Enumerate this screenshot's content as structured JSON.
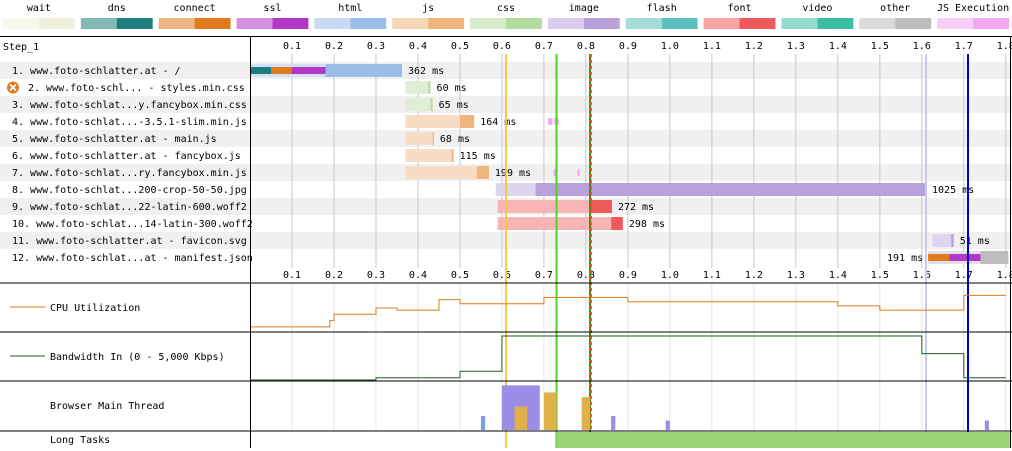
{
  "legend": [
    {
      "label": "wait",
      "color": "#f0f0dc"
    },
    {
      "label": "dns",
      "color": "#1e7d7d"
    },
    {
      "label": "connect",
      "color": "#e07a1c"
    },
    {
      "label": "ssl",
      "color": "#b338c9"
    },
    {
      "label": "html",
      "color": "#9cbde8"
    },
    {
      "label": "js",
      "color": "#f0b47e"
    },
    {
      "label": "css",
      "color": "#b5dca0"
    },
    {
      "label": "image",
      "color": "#b9a2dc"
    },
    {
      "label": "flash",
      "color": "#5fc0c0"
    },
    {
      "label": "font",
      "color": "#ee5a5a"
    },
    {
      "label": "video",
      "color": "#3bbea0"
    },
    {
      "label": "other",
      "color": "#bdbdbd"
    },
    {
      "label": "JS Execution",
      "color": "#f3a6f3"
    }
  ],
  "step_label": "Step_1",
  "graph_labels": {
    "cpu": "CPU Utilization",
    "bandwidth": "Bandwidth In (0 - 5,000 Kbps)",
    "main_thread": "Browser Main Thread",
    "long_tasks": "Long Tasks"
  },
  "chart_data": {
    "type": "waterfall",
    "x_ticks": [
      "0.1",
      "0.2",
      "0.3",
      "0.4",
      "0.5",
      "0.6",
      "0.7",
      "0.8",
      "0.9",
      "1.0",
      "1.1",
      "1.2",
      "1.3",
      "1.4",
      "1.5",
      "1.6",
      "1.7",
      "1.8"
    ],
    "xlim": [
      0,
      1.81
    ],
    "markers": [
      {
        "time": 0.61,
        "color": "#f2c84b"
      },
      {
        "time": 0.73,
        "color": "#4fd02a"
      },
      {
        "time": 0.81,
        "color": "#2a8a2a"
      },
      {
        "time": 0.812,
        "color": "#e05a00",
        "dashed": true
      },
      {
        "time": 1.61,
        "color": "#c8c8f0"
      },
      {
        "time": 1.71,
        "color": "#0000cc"
      }
    ],
    "requests": [
      {
        "label": "1. www.foto-schlatter.at - /",
        "duration": "362 ms",
        "type": "html",
        "start": 0.0,
        "end": 0.362,
        "ttfb": 0.18,
        "phases": [
          {
            "type": "dns",
            "start": 0.0,
            "end": 0.05
          },
          {
            "type": "connect",
            "start": 0.05,
            "end": 0.1
          },
          {
            "type": "ssl",
            "start": 0.1,
            "end": 0.18
          }
        ],
        "js_exec": []
      },
      {
        "label": "2. www.foto-schl... - styles.min.css",
        "duration": "60 ms",
        "type": "css",
        "start": 0.37,
        "end": 0.43,
        "ttfb": 0.425,
        "error": true,
        "phases": [],
        "js_exec": []
      },
      {
        "label": "3. www.foto-schlat...y.fancybox.min.css",
        "duration": "65 ms",
        "type": "css",
        "start": 0.37,
        "end": 0.435,
        "ttfb": 0.43,
        "phases": [],
        "js_exec": []
      },
      {
        "label": "4. www.foto-schlat...-3.5.1-slim.min.js",
        "duration": "164 ms",
        "type": "js",
        "start": 0.37,
        "end": 0.534,
        "ttfb": 0.5,
        "phases": [],
        "js_exec": [
          [
            0.71,
            0.72
          ],
          [
            0.725,
            0.735
          ]
        ]
      },
      {
        "label": "5. www.foto-schlatter.at - main.js",
        "duration": "68 ms",
        "type": "js",
        "start": 0.37,
        "end": 0.438,
        "ttfb": 0.435,
        "phases": [],
        "js_exec": []
      },
      {
        "label": "6. www.foto-schlatter.at - fancybox.js",
        "duration": "115 ms",
        "type": "js",
        "start": 0.37,
        "end": 0.485,
        "ttfb": 0.48,
        "phases": [],
        "js_exec": []
      },
      {
        "label": "7. www.foto-schlat...ry.fancybox.min.js",
        "duration": "199 ms",
        "type": "js",
        "start": 0.37,
        "end": 0.569,
        "ttfb": 0.54,
        "phases": [],
        "js_exec": [
          [
            0.723,
            0.726
          ],
          [
            0.78,
            0.783
          ]
        ]
      },
      {
        "label": "8. www.foto-schlat...200-crop-50-50.jpg",
        "duration": "1025 ms",
        "type": "image",
        "start": 0.585,
        "end": 1.61,
        "ttfb": 0.68,
        "phases": [],
        "js_exec": []
      },
      {
        "label": "9. www.foto-schlat...22-latin-600.woff2",
        "duration": "272 ms",
        "type": "font",
        "start": 0.59,
        "end": 0.862,
        "ttfb": 0.81,
        "phases": [],
        "js_exec": []
      },
      {
        "label": "10. www.foto-schlat...14-latin-300.woff2",
        "duration": "298 ms",
        "type": "font",
        "start": 0.59,
        "end": 0.888,
        "ttfb": 0.86,
        "phases": [],
        "js_exec": []
      },
      {
        "label": "11. www.foto-schlatter.at - favicon.svg",
        "duration": "51 ms",
        "type": "image",
        "start": 1.625,
        "end": 1.676,
        "ttfb": 1.67,
        "phases": [],
        "js_exec": []
      },
      {
        "label": "12. www.foto-schlat...at - manifest.json",
        "duration": "191 ms",
        "type": "other",
        "start": 1.615,
        "end": 1.806,
        "ttfb": 1.74,
        "label_left": true,
        "phases": [
          {
            "type": "connect",
            "start": 1.615,
            "end": 1.665
          },
          {
            "type": "ssl",
            "start": 1.665,
            "end": 1.74
          }
        ],
        "js_exec": []
      }
    ],
    "cpu": [
      [
        0,
        0.05
      ],
      [
        0.19,
        0.05
      ],
      [
        0.19,
        0.2
      ],
      [
        0.2,
        0.2
      ],
      [
        0.2,
        0.35
      ],
      [
        0.3,
        0.35
      ],
      [
        0.3,
        0.5
      ],
      [
        0.35,
        0.5
      ],
      [
        0.35,
        0.45
      ],
      [
        0.45,
        0.45
      ],
      [
        0.45,
        0.7
      ],
      [
        0.5,
        0.7
      ],
      [
        0.5,
        0.6
      ],
      [
        0.58,
        0.6
      ],
      [
        0.58,
        0.6
      ],
      [
        0.7,
        0.6
      ],
      [
        0.7,
        0.75
      ],
      [
        0.9,
        0.75
      ],
      [
        0.9,
        0.65
      ],
      [
        1.4,
        0.65
      ],
      [
        1.4,
        0.55
      ],
      [
        1.5,
        0.55
      ],
      [
        1.5,
        0.45
      ],
      [
        1.7,
        0.45
      ],
      [
        1.7,
        0.8
      ],
      [
        1.8,
        0.8
      ]
    ],
    "bandwidth": [
      [
        0,
        0
      ],
      [
        0.3,
        0
      ],
      [
        0.3,
        0.05
      ],
      [
        0.5,
        0.05
      ],
      [
        0.5,
        0.2
      ],
      [
        0.6,
        0.2
      ],
      [
        0.6,
        1.0
      ],
      [
        1.6,
        1.0
      ],
      [
        1.6,
        0.6
      ],
      [
        1.7,
        0.6
      ],
      [
        1.7,
        0.05
      ],
      [
        1.8,
        0.05
      ]
    ],
    "main_thread": [
      [
        0.6,
        0.69,
        0.95,
        "#9b8ce8"
      ],
      [
        0.7,
        0.73,
        0.8,
        "#e0b04a"
      ],
      [
        0.79,
        0.81,
        0.7,
        "#e0b04a"
      ],
      [
        0.63,
        0.66,
        0.5,
        "#e0b04a"
      ],
      [
        0.55,
        0.56,
        0.3,
        "#7aa0e0"
      ],
      [
        0.86,
        0.87,
        0.3,
        "#9b8ce8"
      ],
      [
        0.99,
        1.0,
        0.2,
        "#9b8ce8"
      ],
      [
        1.75,
        1.76,
        0.2,
        "#9b8ce8"
      ]
    ],
    "long_tasks": [
      [
        0.73,
        1.81
      ]
    ]
  }
}
